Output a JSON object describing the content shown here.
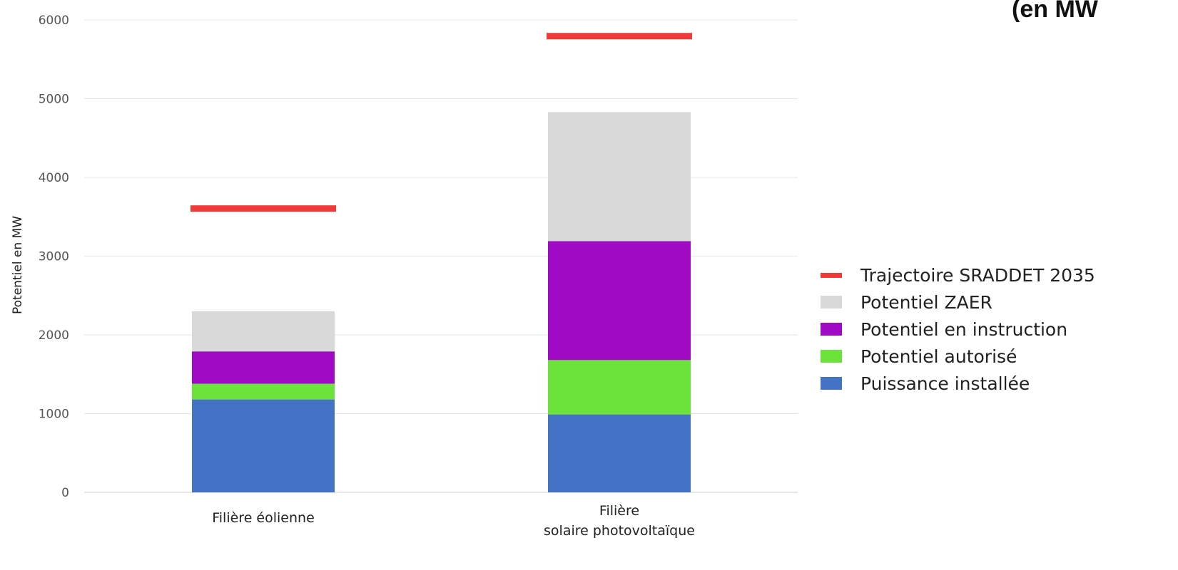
{
  "corner_text": "(en MW",
  "chart_data": {
    "type": "bar",
    "stacked": true,
    "ylabel": "Potentiel en MW",
    "ylim": [
      0,
      6000
    ],
    "yticks": [
      0,
      1000,
      2000,
      3000,
      4000,
      5000,
      6000
    ],
    "grid": true,
    "legend_position": "right",
    "categories": [
      [
        "Filière éolienne"
      ],
      [
        "Filière",
        "solaire photovoltaïque"
      ]
    ],
    "series": [
      {
        "name": "Puissance installée",
        "color": "#4472C4",
        "values": [
          1180,
          990
        ]
      },
      {
        "name": "Potentiel autorisé",
        "color": "#6BE33B",
        "values": [
          200,
          690
        ]
      },
      {
        "name": "Potentiel en instruction",
        "color": "#A00AC4",
        "values": [
          410,
          1510
        ]
      },
      {
        "name": "Potentiel ZAER",
        "color": "#D9D9D9",
        "values": [
          510,
          1640
        ]
      }
    ],
    "target": {
      "name": "Trajectoire SRADDET 2035",
      "color": "#F03A3A",
      "values": [
        3600,
        5790
      ]
    },
    "legend_order": [
      "Trajectoire SRADDET 2035",
      "Potentiel ZAER",
      "Potentiel en instruction",
      "Potentiel autorisé",
      "Puissance installée"
    ]
  }
}
